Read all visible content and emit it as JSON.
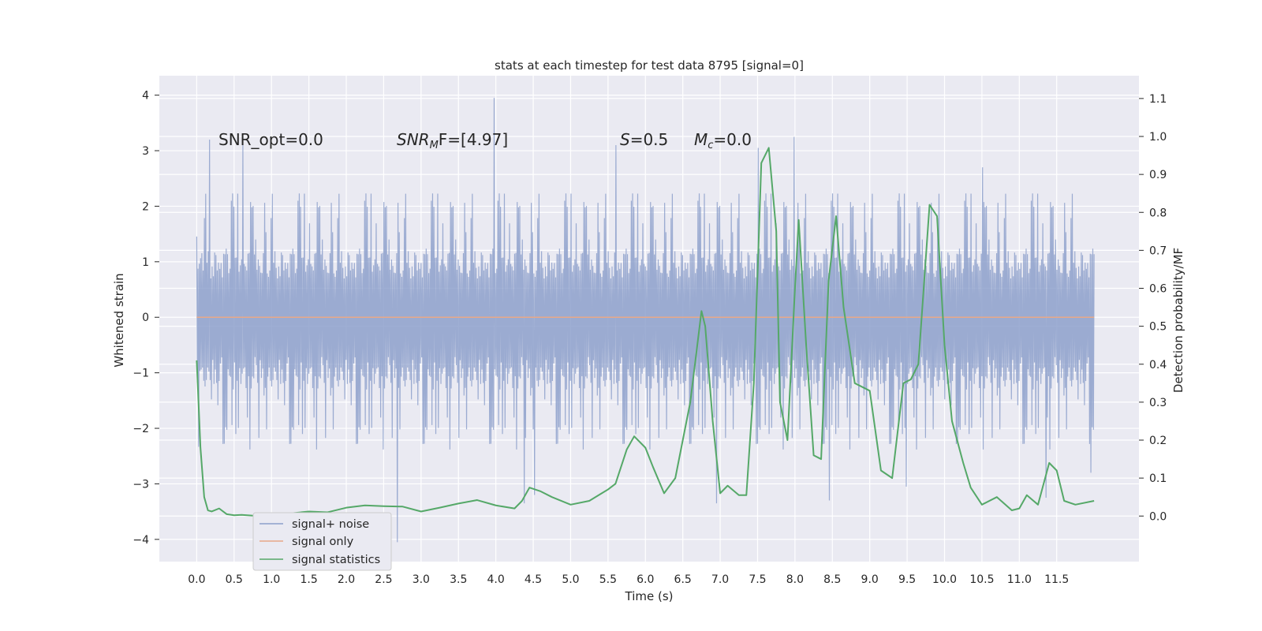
{
  "chart_data": {
    "type": "line",
    "title": "stats at each timestep for test data 8795 [signal=0]",
    "xlabel": "Time (s)",
    "ylabel_left": "Whitened strain",
    "ylabel_right": "Detection probability/MF",
    "xlim": [
      -0.5,
      12.6
    ],
    "ylim_left": [
      -4.4,
      4.35
    ],
    "ylim_right": [
      -0.12,
      1.16
    ],
    "x_ticks": [
      0.0,
      0.5,
      1.0,
      1.5,
      2.0,
      2.5,
      3.0,
      3.5,
      4.0,
      4.5,
      5.0,
      5.5,
      6.0,
      6.5,
      7.0,
      7.5,
      8.0,
      8.5,
      9.0,
      9.5,
      10.0,
      10.5,
      11.0,
      11.5
    ],
    "x_tick_labels": [
      "0.0",
      "0.5",
      "1.0",
      "1.5",
      "2.0",
      "2.5",
      "3.0",
      "3.5",
      "4.0",
      "4.5",
      "5.0",
      "5.5",
      "6.0",
      "6.5",
      "7.0",
      "7.5",
      "8.0",
      "8.5",
      "9.0",
      "9.5",
      "10.0",
      "10.5",
      "11.0",
      "11.5"
    ],
    "y_left_ticks": [
      4,
      3,
      2,
      1,
      0,
      -1,
      -2,
      -3,
      -4
    ],
    "y_left_tick_labels": [
      "4",
      "3",
      "2",
      "1",
      "0",
      "−1",
      "−2",
      "−3",
      "−4"
    ],
    "y_right_ticks": [
      1.1,
      1.0,
      0.9,
      0.8,
      0.7,
      0.6,
      0.5,
      0.4,
      0.3,
      0.2,
      0.1,
      0.0
    ],
    "y_right_tick_labels": [
      "1.1",
      "1.0",
      "0.9",
      "0.8",
      "0.7",
      "0.6",
      "0.5",
      "0.4",
      "0.3",
      "0.2",
      "0.1",
      "0.0"
    ],
    "grid": true,
    "legend_position": "lower-left",
    "annotations": {
      "snr_opt": "SNR_opt=0.0",
      "snr_mf_name": "SNR",
      "snr_mf_sub": "M",
      "snr_mf_rest": "F=[4.97]",
      "s_name": "S",
      "s_rest": "=0.5",
      "mc_name": "M",
      "mc_sub": "c",
      "mc_rest": "=0.0"
    },
    "series": [
      {
        "name": "signal+ noise",
        "color": "#8da0cb",
        "axis": "left",
        "style": "dense noise trace",
        "x_range": [
          0.0,
          12.0
        ],
        "core_band": [
          -1.3,
          1.2
        ],
        "spikes": [
          [
            0.16,
            3.2
          ],
          [
            0.62,
            3.1
          ],
          [
            2.68,
            -4.05
          ],
          [
            3.97,
            3.95
          ],
          [
            4.38,
            -3.35
          ],
          [
            4.52,
            -3.2
          ],
          [
            5.6,
            3.1
          ],
          [
            6.95,
            -3.35
          ],
          [
            7.5,
            3.05
          ],
          [
            7.98,
            3.25
          ],
          [
            8.45,
            -3.3
          ],
          [
            9.48,
            -3.05
          ],
          [
            10.5,
            2.7
          ],
          [
            11.35,
            -3.25
          ],
          [
            11.95,
            -2.8
          ]
        ]
      },
      {
        "name": "signal only",
        "color": "#e8a888",
        "axis": "left",
        "x": [
          0.0,
          12.0
        ],
        "y": [
          0.0,
          0.0
        ]
      },
      {
        "name": "signal statistics",
        "color": "#55a868",
        "axis": "right",
        "x": [
          0.0,
          0.05,
          0.1,
          0.15,
          0.2,
          0.3,
          0.4,
          0.5,
          0.6,
          0.75,
          1.0,
          1.25,
          1.5,
          1.75,
          2.0,
          2.25,
          2.5,
          2.75,
          3.0,
          3.25,
          3.5,
          3.75,
          4.0,
          4.25,
          4.35,
          4.45,
          4.6,
          4.75,
          5.0,
          5.25,
          5.5,
          5.6,
          5.75,
          5.85,
          6.0,
          6.1,
          6.25,
          6.4,
          6.6,
          6.75,
          6.8,
          6.9,
          7.0,
          7.1,
          7.25,
          7.35,
          7.45,
          7.55,
          7.65,
          7.75,
          7.8,
          7.9,
          8.0,
          8.05,
          8.15,
          8.25,
          8.35,
          8.45,
          8.55,
          8.65,
          8.8,
          9.0,
          9.15,
          9.3,
          9.45,
          9.55,
          9.65,
          9.8,
          9.9,
          10.0,
          10.1,
          10.25,
          10.35,
          10.5,
          10.7,
          10.9,
          11.0,
          11.1,
          11.25,
          11.4,
          11.5,
          11.6,
          11.75,
          12.0
        ],
        "y": [
          0.41,
          0.18,
          0.05,
          0.015,
          0.012,
          0.02,
          0.005,
          0.002,
          0.003,
          0.001,
          0.002,
          0.007,
          0.012,
          0.01,
          0.022,
          0.028,
          0.026,
          0.025,
          0.012,
          0.022,
          0.033,
          0.042,
          0.028,
          0.02,
          0.04,
          0.075,
          0.065,
          0.05,
          0.03,
          0.04,
          0.07,
          0.085,
          0.175,
          0.21,
          0.18,
          0.13,
          0.06,
          0.1,
          0.3,
          0.54,
          0.5,
          0.25,
          0.06,
          0.08,
          0.055,
          0.055,
          0.35,
          0.93,
          0.97,
          0.75,
          0.3,
          0.2,
          0.6,
          0.78,
          0.45,
          0.16,
          0.15,
          0.62,
          0.79,
          0.55,
          0.35,
          0.33,
          0.12,
          0.1,
          0.35,
          0.36,
          0.4,
          0.82,
          0.79,
          0.45,
          0.25,
          0.14,
          0.075,
          0.03,
          0.05,
          0.015,
          0.02,
          0.055,
          0.03,
          0.14,
          0.12,
          0.04,
          0.03,
          0.04
        ]
      }
    ]
  }
}
